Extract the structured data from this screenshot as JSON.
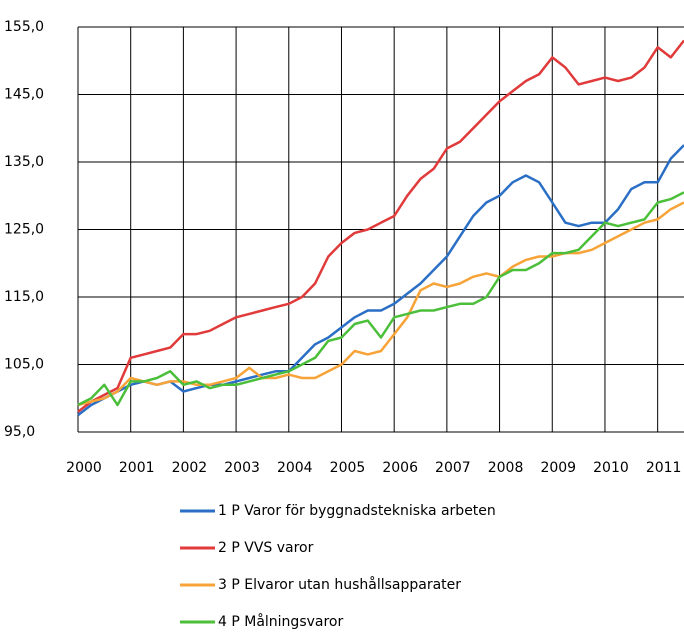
{
  "chart_data": {
    "type": "line",
    "x": [
      2000,
      2000.25,
      2000.5,
      2000.75,
      2001,
      2001.25,
      2001.5,
      2001.75,
      2002,
      2002.25,
      2002.5,
      2002.75,
      2003,
      2003.25,
      2003.5,
      2003.75,
      2004,
      2004.25,
      2004.5,
      2004.75,
      2005,
      2005.25,
      2005.5,
      2005.75,
      2006,
      2006.25,
      2006.5,
      2006.75,
      2007,
      2007.25,
      2007.5,
      2007.75,
      2008,
      2008.25,
      2008.5,
      2008.75,
      2009,
      2009.25,
      2009.5,
      2009.75,
      2010,
      2010.25,
      2010.5,
      2010.75,
      2011,
      2011.25,
      2011.5
    ],
    "series": [
      {
        "name": "1 P Varor för byggnadstekniska arbeten",
        "color": "#2a6fc5",
        "values": [
          97.5,
          99,
          100,
          101,
          102,
          102.5,
          102,
          102.5,
          101,
          101.5,
          102,
          102,
          102.5,
          103,
          103.5,
          104,
          104,
          106,
          108,
          109,
          110.5,
          112,
          113,
          113,
          114,
          115.5,
          117,
          119,
          121,
          124,
          127,
          129,
          130,
          132,
          133,
          132,
          129,
          126,
          125.5,
          126,
          126,
          128,
          131,
          132,
          132,
          135.5,
          137.5
        ]
      },
      {
        "name": "2 P VVS varor",
        "color": "#e03a3a",
        "values": [
          98,
          99.5,
          100.5,
          101.5,
          106,
          106.5,
          107,
          107.5,
          109.5,
          109.5,
          110,
          111,
          112,
          112.5,
          113,
          113.5,
          114,
          115,
          117,
          121,
          123,
          124.5,
          125,
          126,
          127,
          130,
          132.5,
          134,
          137,
          138,
          140,
          142,
          144,
          145.5,
          147,
          148,
          150.5,
          149,
          146.5,
          147,
          147.5,
          147,
          147.5,
          149,
          152,
          150.5,
          153
        ]
      },
      {
        "name": "3 P Elvaror utan hushållsapparater",
        "color": "#f7a338",
        "values": [
          99,
          99.5,
          100,
          101,
          103,
          102.5,
          102,
          102.5,
          102.5,
          102,
          102,
          102.5,
          103,
          104.5,
          103,
          103,
          103.5,
          103,
          103,
          104,
          105,
          107,
          106.5,
          107,
          109.5,
          112,
          116,
          117,
          116.5,
          117,
          118,
          118.5,
          118,
          119.5,
          120.5,
          121,
          121,
          121.5,
          121.5,
          122,
          123,
          124,
          125,
          126,
          126.5,
          128,
          129
        ]
      },
      {
        "name": "4 P Målningsvaror",
        "color": "#4cbf3a",
        "values": [
          99,
          100,
          102,
          99,
          102.5,
          102.5,
          103,
          104,
          102,
          102.5,
          101.5,
          102,
          102,
          102.5,
          103,
          103.5,
          104,
          105,
          106,
          108.5,
          109,
          111,
          111.5,
          109,
          112,
          112.5,
          113,
          113,
          113.5,
          114,
          114,
          115,
          118,
          119,
          119,
          120,
          121.5,
          121.5,
          122,
          124,
          126,
          125.5,
          126,
          126.5,
          129,
          129.5,
          130.5
        ]
      }
    ],
    "xlim": [
      2000,
      2011.5
    ],
    "xticks": [
      2000,
      2001,
      2002,
      2003,
      2004,
      2005,
      2006,
      2007,
      2008,
      2009,
      2010,
      2011
    ],
    "ylim": [
      95,
      155
    ],
    "yticks": [
      {
        "value": 95,
        "label": "95,0"
      },
      {
        "value": 105,
        "label": "105,0"
      },
      {
        "value": 115,
        "label": "115,0"
      },
      {
        "value": 125,
        "label": "125,0"
      },
      {
        "value": 135,
        "label": "135,0"
      },
      {
        "value": 145,
        "label": "145,0"
      },
      {
        "value": 155,
        "label": "155,0"
      }
    ],
    "grid": true
  }
}
